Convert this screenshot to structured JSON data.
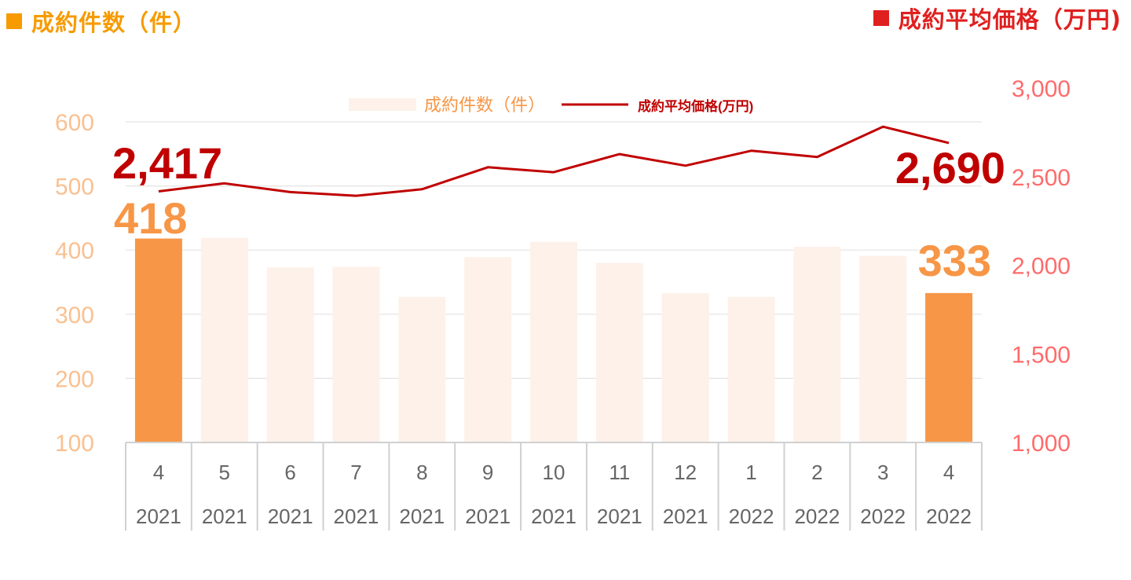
{
  "header": {
    "left_title": "成約件数（件）",
    "right_title": "成約平均価格（万円)"
  },
  "colors": {
    "bar_highlight": "#F79646",
    "bar_normal": "#FDF1E9",
    "line": "#C00000",
    "left_axis_text": "#FAC090",
    "right_axis_text": "#FF6B6B",
    "header_left": "#F79B00",
    "header_right": "#E02020",
    "callout_count": "#F79646",
    "callout_price": "#C00000"
  },
  "chart_data": {
    "type": "bar+line",
    "categories": [
      "4",
      "5",
      "6",
      "7",
      "8",
      "9",
      "10",
      "11",
      "12",
      "1",
      "2",
      "3",
      "4"
    ],
    "years": [
      "2021",
      "2021",
      "2021",
      "2021",
      "2021",
      "2021",
      "2021",
      "2021",
      "2021",
      "2022",
      "2022",
      "2022",
      "2022"
    ],
    "series": [
      {
        "name": "成約件数（件）",
        "type": "bar",
        "axis": "left",
        "values": [
          418,
          419,
          373,
          374,
          327,
          389,
          413,
          380,
          333,
          327,
          405,
          391,
          333
        ]
      },
      {
        "name": "成約平均価格(万円)",
        "type": "line",
        "axis": "right",
        "values": [
          2417,
          2462,
          2413,
          2392,
          2429,
          2553,
          2525,
          2627,
          2562,
          2646,
          2611,
          2782,
          2690
        ]
      }
    ],
    "left_axis": {
      "ylim": [
        100,
        600
      ],
      "ticks": [
        "100",
        "200",
        "300",
        "400",
        "500",
        "600"
      ]
    },
    "right_axis": {
      "ylim": [
        1000,
        3000
      ],
      "ticks": [
        "1,000",
        "1,500",
        "2,000",
        "2,500",
        "3,000"
      ]
    },
    "highlight_indices": [
      0,
      12
    ],
    "callouts": {
      "first_count": "418",
      "last_count": "333",
      "first_price": "2,417",
      "last_price": "2,690"
    },
    "legend": {
      "position": "top"
    },
    "grid": true
  }
}
